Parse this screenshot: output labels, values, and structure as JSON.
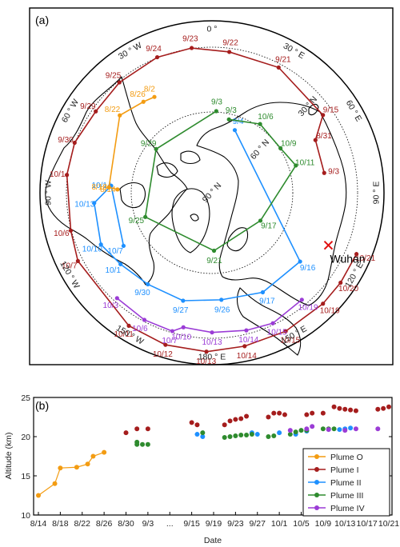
{
  "chart_data": [
    {
      "type": "map",
      "panel_label": "(a)",
      "projection": "north polar stereographic",
      "lon_labels": [
        {
          "text": "180 ° E",
          "lon": 180
        },
        {
          "text": "150 ° E",
          "lon": 150
        },
        {
          "text": "120 ° E",
          "lon": 120
        },
        {
          "text": "90 ° E",
          "lon": 90
        },
        {
          "text": "60 ° E",
          "lon": 60
        },
        {
          "text": "30 ° E",
          "lon": 30
        },
        {
          "text": "0 °",
          "lon": 0
        },
        {
          "text": "30 ° W",
          "lon": -30
        },
        {
          "text": "60 ° W",
          "lon": -60
        },
        {
          "text": "90 ° W",
          "lon": -90
        },
        {
          "text": "120 ° W",
          "lon": -120
        },
        {
          "text": "150 ° W",
          "lon": -150
        }
      ],
      "lat_labels": [
        {
          "text": "90 ° N",
          "lat": 90
        },
        {
          "text": "60 ° N",
          "lat": 60
        },
        {
          "text": "30 ° N",
          "lat": 30
        }
      ],
      "annotation": {
        "text": "Wuhan",
        "lat": 30.6,
        "lon": 114.3,
        "color": "#e01010"
      },
      "plumes": [
        {
          "color": "#a51d1d",
          "points": [
            {
              "label": "9/3",
              "lat": 37,
              "lon": 80
            },
            {
              "label": "8/31",
              "lat": 36,
              "lon": 63
            },
            {
              "label": "9/15",
              "lat": 27,
              "lon": 55
            },
            {
              "label": "9/21",
              "lat": 24,
              "lon": 28
            },
            {
              "label": "9/22",
              "lat": 24,
              "lon": 7
            },
            {
              "label": "9/23",
              "lat": 22,
              "lon": -8
            },
            {
              "label": "9/24",
              "lat": 22,
              "lon": -22
            },
            {
              "label": "9/25",
              "lat": 23,
              "lon": -40
            },
            {
              "label": "9/29",
              "lat": 24,
              "lon": -55
            },
            {
              "label": "9/30",
              "lat": 22,
              "lon": -70
            },
            {
              "label": "10/1",
              "lat": 22,
              "lon": -83
            },
            {
              "label": "10/6",
              "lat": 22,
              "lon": -105
            },
            {
              "label": "10/7",
              "lat": 20,
              "lon": -117
            },
            {
              "label": "10/11",
              "lat": 17,
              "lon": -148
            },
            {
              "label": "10/12",
              "lat": 16,
              "lon": -163
            },
            {
              "label": "10/13",
              "lat": 16,
              "lon": -178
            },
            {
              "label": "10/14",
              "lat": 17,
              "lon": 168
            },
            {
              "label": "10/15",
              "lat": 17,
              "lon": 152
            },
            {
              "label": "10/19",
              "lat": 17,
              "lon": 135
            },
            {
              "label": "10/20",
              "lat": 17,
              "lon": 125
            },
            {
              "label": "10/21",
              "lat": 17,
              "lon": 113
            }
          ]
        },
        {
          "color": "#1e90ff",
          "points": [
            {
              "label": "9/4",
              "lat": 59,
              "lon": 20
            },
            {
              "label": "9/16",
              "lat": 38,
              "lon": 128
            },
            {
              "label": "9/17",
              "lat": 38,
              "lon": 153
            },
            {
              "label": "9/26",
              "lat": 40,
              "lon": 175
            },
            {
              "label": "9/27",
              "lat": 38,
              "lon": -165
            },
            {
              "label": "9/30",
              "lat": 38,
              "lon": -145
            },
            {
              "label": "10/1",
              "lat": 36,
              "lon": -128
            },
            {
              "label": "10/10",
              "lat": 33,
              "lon": -115
            },
            {
              "label": "10/13",
              "lat": 35,
              "lon": -95
            },
            {
              "label": "10/14",
              "lat": 43,
              "lon": -86
            },
            {
              "label": "10/7",
              "lat": 42,
              "lon": -121
            }
          ]
        },
        {
          "color": "#2e8b2e",
          "points": [
            {
              "label": "9/3",
              "lat": 55,
              "lon": 13
            },
            {
              "label": "10/6",
              "lat": 51,
              "lon": 35
            },
            {
              "label": "10/9",
              "lat": 52,
              "lon": 57
            },
            {
              "label": "10/11",
              "lat": 49,
              "lon": 72
            },
            {
              "label": "9/17",
              "lat": 64,
              "lon": 120
            },
            {
              "label": "9/21",
              "lat": 63,
              "lon": 178
            },
            {
              "label": "9/25",
              "lat": 57,
              "lon": -110
            },
            {
              "label": "9/29",
              "lat": 57,
              "lon": -52
            },
            {
              "label": "9/3",
              "lat": 52,
              "lon": 3
            }
          ]
        },
        {
          "color": "#f39c12",
          "points": [
            {
              "label": "8/14",
              "lat": 46,
              "lon": -88
            },
            {
              "label": "8/18",
              "lat": 42,
              "lon": -87
            },
            {
              "label": "8/22",
              "lat": 34,
              "lon": -50
            },
            {
              "label": "8/26",
              "lat": 37,
              "lon": -37
            },
            {
              "label": "8/2",
              "lat": 38,
              "lon": -31
            }
          ]
        },
        {
          "color": "#9b3cd6",
          "points": [
            {
              "label": "10/3",
              "lat": 24,
              "lon": -138
            },
            {
              "label": "10/6",
              "lat": 23,
              "lon": -152
            },
            {
              "label": "10/7",
              "lat": 23,
              "lon": -164
            },
            {
              "label": "10/10",
              "lat": 26,
              "lon": -168
            },
            {
              "label": "10/13",
              "lat": 25,
              "lon": -180
            },
            {
              "label": "10/14",
              "lat": 24,
              "lon": 166
            },
            {
              "label": "10/15",
              "lat": 23,
              "lon": 155
            },
            {
              "label": "10/19",
              "lat": 25,
              "lon": 140
            }
          ]
        }
      ]
    },
    {
      "type": "scatter",
      "panel_label": "(b)",
      "xlabel": "Date",
      "ylabel": "Altitude (km)",
      "ylim": [
        10,
        25
      ],
      "yticks": [
        10,
        15,
        20,
        25
      ],
      "xticks": [
        "8/14",
        "8/18",
        "8/22",
        "8/26",
        "8/30",
        "9/3",
        "...",
        "9/15",
        "9/19",
        "9/23",
        "9/27",
        "10/1",
        "10/5",
        "10/9",
        "10/13",
        "10/17",
        "10/21"
      ],
      "legend_position": "bottom-right",
      "series": [
        {
          "name": "Plume O",
          "color": "#f39c12",
          "connected": true,
          "points": [
            [
              "8/14",
              12.5
            ],
            [
              "8/17",
              14.0
            ],
            [
              "8/18",
              16.0
            ],
            [
              "8/21",
              16.1
            ],
            [
              "8/23",
              16.5
            ],
            [
              "8/24",
              17.5
            ],
            [
              "8/26",
              18.0
            ]
          ]
        },
        {
          "name": "Plume I",
          "color": "#a51d1d",
          "connected": false,
          "points": [
            [
              "8/30",
              20.5
            ],
            [
              "9/1",
              21.0
            ],
            [
              "9/3",
              21.0
            ],
            [
              "9/15",
              21.8
            ],
            [
              "9/16",
              21.5
            ],
            [
              "9/21",
              21.5
            ],
            [
              "9/22",
              22.0
            ],
            [
              "9/23",
              22.2
            ],
            [
              "9/24",
              22.3
            ],
            [
              "9/25",
              22.6
            ],
            [
              "9/29",
              22.5
            ],
            [
              "9/30",
              23.0
            ],
            [
              "10/1",
              23.0
            ],
            [
              "10/2",
              22.8
            ],
            [
              "10/6",
              22.8
            ],
            [
              "10/7",
              23.0
            ],
            [
              "10/9",
              23.0
            ],
            [
              "10/11",
              23.8
            ],
            [
              "10/12",
              23.6
            ],
            [
              "10/13",
              23.5
            ],
            [
              "10/14",
              23.4
            ],
            [
              "10/15",
              23.3
            ],
            [
              "10/19",
              23.5
            ],
            [
              "10/20",
              23.6
            ],
            [
              "10/21",
              23.8
            ]
          ]
        },
        {
          "name": "Plume II",
          "color": "#1e90ff",
          "connected": false,
          "points": [
            [
              "9/16",
              20.3
            ],
            [
              "9/17",
              20.0
            ],
            [
              "9/26",
              20.5
            ],
            [
              "9/27",
              20.3
            ],
            [
              "10/1",
              20.5
            ],
            [
              "10/4",
              20.3
            ],
            [
              "10/6",
              20.7
            ],
            [
              "10/12",
              20.9
            ],
            [
              "10/13",
              21.0
            ],
            [
              "10/14",
              21.1
            ]
          ]
        },
        {
          "name": "Plume III",
          "color": "#2e8b2e",
          "connected": false,
          "points": [
            [
              "9/1",
              19.3
            ],
            [
              "9/1",
              19.0
            ],
            [
              "9/2",
              19.0
            ],
            [
              "9/3",
              19.0
            ],
            [
              "9/17",
              20.5
            ],
            [
              "9/21",
              19.9
            ],
            [
              "9/22",
              20.0
            ],
            [
              "9/23",
              20.1
            ],
            [
              "9/24",
              20.2
            ],
            [
              "9/25",
              20.2
            ],
            [
              "9/26",
              20.3
            ],
            [
              "9/29",
              20.0
            ],
            [
              "9/30",
              20.1
            ],
            [
              "10/3",
              20.3
            ],
            [
              "10/4",
              20.6
            ],
            [
              "10/5",
              20.8
            ],
            [
              "10/6",
              20.8
            ],
            [
              "10/9",
              21.0
            ],
            [
              "10/10",
              21.0
            ],
            [
              "10/11",
              21.0
            ]
          ]
        },
        {
          "name": "Plume IV",
          "color": "#9b3cd6",
          "connected": false,
          "points": [
            [
              "10/3",
              20.8
            ],
            [
              "10/6",
              21.0
            ],
            [
              "10/7",
              21.3
            ],
            [
              "10/10",
              20.9
            ],
            [
              "10/13",
              20.8
            ],
            [
              "10/15",
              21.0
            ],
            [
              "10/19",
              21.0
            ]
          ]
        }
      ]
    }
  ]
}
